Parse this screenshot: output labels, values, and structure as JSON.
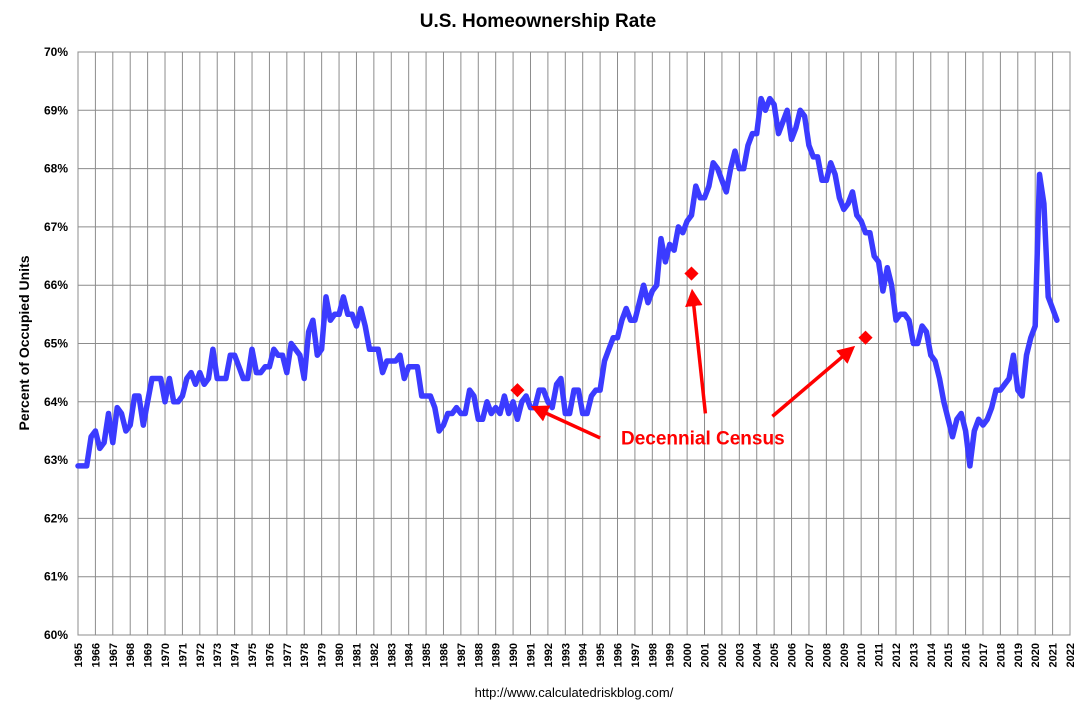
{
  "chart_data": {
    "type": "line",
    "title": "U.S. Homeownership Rate",
    "ylabel": "Percent of Occupied Units",
    "xlabel": "",
    "source": "http://www.calculatedriskblog.com/",
    "ylim": [
      60,
      70
    ],
    "xlim": [
      1965,
      2022
    ],
    "y_ticks": [
      "60%",
      "61%",
      "62%",
      "63%",
      "64%",
      "65%",
      "66%",
      "67%",
      "68%",
      "69%",
      "70%"
    ],
    "x_ticks": [
      "1965",
      "1966",
      "1967",
      "1968",
      "1969",
      "1970",
      "1971",
      "1972",
      "1973",
      "1974",
      "1975",
      "1976",
      "1977",
      "1978",
      "1979",
      "1980",
      "1981",
      "1982",
      "1983",
      "1984",
      "1985",
      "1986",
      "1987",
      "1988",
      "1989",
      "1990",
      "1991",
      "1992",
      "1993",
      "1994",
      "1995",
      "1996",
      "1997",
      "1998",
      "1999",
      "2000",
      "2001",
      "2002",
      "2003",
      "2004",
      "2005",
      "2006",
      "2007",
      "2008",
      "2009",
      "2010",
      "2011",
      "2012",
      "2013",
      "2014",
      "2015",
      "2016",
      "2017",
      "2018",
      "2019",
      "2020",
      "2021",
      "2022"
    ],
    "grid": true,
    "series": [
      {
        "color": "#3b3bff",
        "x": [
          1965.0,
          1965.5,
          1965.75,
          1966.0,
          1966.25,
          1966.5,
          1966.75,
          1967.0,
          1967.25,
          1967.5,
          1967.75,
          1968.0,
          1968.25,
          1968.5,
          1968.75,
          1969.0,
          1969.25,
          1969.5,
          1969.75,
          1970.0,
          1970.25,
          1970.5,
          1970.75,
          1971.0,
          1971.25,
          1971.5,
          1971.75,
          1972.0,
          1972.25,
          1972.5,
          1972.75,
          1973.0,
          1973.25,
          1973.5,
          1973.75,
          1974.0,
          1974.25,
          1974.5,
          1974.75,
          1975.0,
          1975.25,
          1975.5,
          1975.75,
          1976.0,
          1976.25,
          1976.5,
          1976.75,
          1977.0,
          1977.25,
          1977.5,
          1977.75,
          1978.0,
          1978.25,
          1978.5,
          1978.75,
          1979.0,
          1979.25,
          1979.5,
          1979.75,
          1980.0,
          1980.25,
          1980.5,
          1980.75,
          1981.0,
          1981.25,
          1981.5,
          1981.75,
          1982.0,
          1982.25,
          1982.5,
          1982.75,
          1983.0,
          1983.25,
          1983.5,
          1983.75,
          1984.0,
          1984.25,
          1984.5,
          1984.75,
          1985.0,
          1985.25,
          1985.5,
          1985.75,
          1986.0,
          1986.25,
          1986.5,
          1986.75,
          1987.0,
          1987.25,
          1987.5,
          1987.75,
          1988.0,
          1988.25,
          1988.5,
          1988.75,
          1989.0,
          1989.25,
          1989.5,
          1989.75,
          1990.0,
          1990.25,
          1990.5,
          1990.75,
          1991.0,
          1991.25,
          1991.5,
          1991.75,
          1992.0,
          1992.25,
          1992.5,
          1992.75,
          1993.0,
          1993.25,
          1993.5,
          1993.75,
          1994.0,
          1994.25,
          1994.5,
          1994.75,
          1995.0,
          1995.25,
          1995.5,
          1995.75,
          1996.0,
          1996.25,
          1996.5,
          1996.75,
          1997.0,
          1997.25,
          1997.5,
          1997.75,
          1998.0,
          1998.25,
          1998.5,
          1998.75,
          1999.0,
          1999.25,
          1999.5,
          1999.75,
          2000.0,
          2000.25,
          2000.5,
          2000.75,
          2001.0,
          2001.25,
          2001.5,
          2001.75,
          2002.0,
          2002.25,
          2002.5,
          2002.75,
          2003.0,
          2003.25,
          2003.5,
          2003.75,
          2004.0,
          2004.25,
          2004.5,
          2004.75,
          2005.0,
          2005.25,
          2005.5,
          2005.75,
          2006.0,
          2006.25,
          2006.5,
          2006.75,
          2007.0,
          2007.25,
          2007.5,
          2007.75,
          2008.0,
          2008.25,
          2008.5,
          2008.75,
          2009.0,
          2009.25,
          2009.5,
          2009.75,
          2010.0,
          2010.25,
          2010.5,
          2010.75,
          2011.0,
          2011.25,
          2011.5,
          2011.75,
          2012.0,
          2012.25,
          2012.5,
          2012.75,
          2013.0,
          2013.25,
          2013.5,
          2013.75,
          2014.0,
          2014.25,
          2014.5,
          2014.75,
          2015.0,
          2015.25,
          2015.5,
          2015.75,
          2016.0,
          2016.25,
          2016.5,
          2016.75,
          2017.0,
          2017.25,
          2017.5,
          2017.75,
          2018.0,
          2018.25,
          2018.5,
          2018.75,
          2019.0,
          2019.25,
          2019.5,
          2019.75,
          2020.0,
          2020.25,
          2020.5,
          2020.75,
          2021.0,
          2021.25
        ],
        "y": [
          62.9,
          62.9,
          63.4,
          63.5,
          63.2,
          63.3,
          63.8,
          63.3,
          63.9,
          63.8,
          63.5,
          63.6,
          64.1,
          64.1,
          63.6,
          64.0,
          64.4,
          64.4,
          64.4,
          64.0,
          64.4,
          64.0,
          64.0,
          64.1,
          64.4,
          64.5,
          64.3,
          64.5,
          64.3,
          64.4,
          64.9,
          64.4,
          64.4,
          64.4,
          64.8,
          64.8,
          64.6,
          64.4,
          64.4,
          64.9,
          64.5,
          64.5,
          64.6,
          64.6,
          64.9,
          64.8,
          64.8,
          64.5,
          65.0,
          64.9,
          64.8,
          64.4,
          65.2,
          65.4,
          64.8,
          64.9,
          65.8,
          65.4,
          65.5,
          65.5,
          65.8,
          65.5,
          65.5,
          65.3,
          65.6,
          65.3,
          64.9,
          64.9,
          64.9,
          64.5,
          64.7,
          64.7,
          64.7,
          64.8,
          64.4,
          64.6,
          64.6,
          64.6,
          64.1,
          64.1,
          64.1,
          63.9,
          63.5,
          63.6,
          63.8,
          63.8,
          63.9,
          63.8,
          63.8,
          64.2,
          64.1,
          63.7,
          63.7,
          64.0,
          63.8,
          63.9,
          63.8,
          64.1,
          63.8,
          64.0,
          63.7,
          64.0,
          64.1,
          63.9,
          63.9,
          64.2,
          64.2,
          64.0,
          63.9,
          64.3,
          64.4,
          63.8,
          63.8,
          64.2,
          64.2,
          63.8,
          63.8,
          64.1,
          64.2,
          64.2,
          64.7,
          64.9,
          65.1,
          65.1,
          65.4,
          65.6,
          65.4,
          65.4,
          65.7,
          66.0,
          65.7,
          65.9,
          66.0,
          66.8,
          66.4,
          66.7,
          66.6,
          67.0,
          66.9,
          67.1,
          67.2,
          67.7,
          67.5,
          67.5,
          67.7,
          68.1,
          68.0,
          67.8,
          67.6,
          68.0,
          68.3,
          68.0,
          68.0,
          68.4,
          68.6,
          68.6,
          69.2,
          69.0,
          69.2,
          69.1,
          68.6,
          68.8,
          69.0,
          68.5,
          68.7,
          69.0,
          68.9,
          68.4,
          68.2,
          68.2,
          67.8,
          67.8,
          68.1,
          67.9,
          67.5,
          67.3,
          67.4,
          67.6,
          67.2,
          67.1,
          66.9,
          66.9,
          66.5,
          66.4,
          65.9,
          66.3,
          66.0,
          65.4,
          65.5,
          65.5,
          65.4,
          65.0,
          65.0,
          65.3,
          65.2,
          64.8,
          64.7,
          64.4,
          64.0,
          63.7,
          63.4,
          63.7,
          63.8,
          63.5,
          62.9,
          63.5,
          63.7,
          63.6,
          63.7,
          63.9,
          64.2,
          64.2,
          64.3,
          64.4,
          64.8,
          64.2,
          64.1,
          64.8,
          65.1,
          65.3,
          67.9,
          67.4,
          65.8,
          65.6,
          65.4
        ]
      }
    ],
    "markers": [
      {
        "x": 1990.25,
        "y": 64.2,
        "color": "#ff0000"
      },
      {
        "x": 2000.25,
        "y": 66.2,
        "color": "#ff0000"
      },
      {
        "x": 2010.25,
        "y": 65.1,
        "color": "#ff0000"
      }
    ],
    "annotation": {
      "text": "Decennial Census",
      "color": "#ff0000",
      "anchor": {
        "x": 1996.2,
        "y": 63.27
      },
      "arrows": [
        {
          "from": {
            "x": 1995.0,
            "y": 63.38
          },
          "to": {
            "x": 1991.2,
            "y": 63.9
          }
        },
        {
          "from": {
            "x": 2001.05,
            "y": 63.8
          },
          "to": {
            "x": 2000.3,
            "y": 65.88
          }
        },
        {
          "from": {
            "x": 2004.9,
            "y": 63.75
          },
          "to": {
            "x": 2009.5,
            "y": 64.92
          }
        }
      ]
    }
  }
}
